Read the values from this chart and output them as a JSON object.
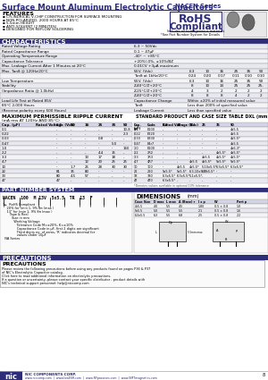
{
  "title_main": "Surface Mount Aluminum Electrolytic Capacitors",
  "title_series": "NACEN Series",
  "features": [
    "CYLINDRICAL V-CHIP CONSTRUCTION FOR SURFACE MOUNTING",
    "NON-POLARIZED, 2000 HOURS AT 85°C",
    "5.5mm HEIGHT",
    "ANTI-SOLVENT (2 MINUTES)",
    "DESIGNED FOR REFLOW SOLDERING"
  ],
  "rohs_text1": "RoHS",
  "rohs_text2": "Compliant",
  "rohs_sub": "Includes all homogeneous materials",
  "rohs_note": "*See Part Number System for Details",
  "characteristics_title": "CHARACTERISTICS",
  "ripple_title": "MAXIMUM PERMISSIBLE RIPPLE CURRENT",
  "ripple_subtitle": "(mA rms AT 120Hz AND 85°C)",
  "ripple_headers": [
    "Cap. (μF)",
    "Rated Voltage (Vdc)",
    "6.3",
    "10",
    "16",
    "25",
    "35",
    "50"
  ],
  "ripple_rows": [
    [
      "0.1",
      "-",
      "-",
      "-",
      "-",
      "-",
      "10.8"
    ],
    [
      "0.22",
      "-",
      "-",
      "-",
      "-",
      "-",
      "2.3"
    ],
    [
      "0.33",
      "-",
      "-",
      "-",
      "0.8",
      "-",
      "-"
    ],
    [
      "0.47",
      "-",
      "-",
      "-",
      "-",
      "5.0",
      "-"
    ],
    [
      "1.0",
      "-",
      "-",
      "-",
      "-",
      "-",
      "160"
    ],
    [
      "2.2",
      "-",
      "-",
      "-",
      "4.4",
      "15",
      "-"
    ],
    [
      "3.3",
      "-",
      "-",
      "10",
      "17",
      "18",
      "-"
    ],
    [
      "4.7",
      "-",
      "-",
      "12",
      "20",
      "25",
      "25"
    ],
    [
      "10",
      "-",
      "1.7",
      "25",
      "28",
      "30",
      "30"
    ],
    [
      "22",
      "81",
      "35",
      "80",
      "-",
      "-",
      "-"
    ],
    [
      "33",
      "80",
      "4.5",
      "57",
      "-",
      "-",
      "-"
    ],
    [
      "47",
      "47",
      "-",
      "-",
      "-",
      "-",
      "-"
    ]
  ],
  "std_title": "STANDARD PRODUCT AND CASE SIZE TABLE DXL (mm)",
  "std_headers": [
    "Cap.\n(μF)",
    "Code",
    "6.3",
    "10",
    "16",
    "25",
    "35",
    "50"
  ],
  "std_rows": [
    [
      "0.1",
      "E100",
      "-",
      "-",
      "-",
      "-",
      "-",
      "4x5.5"
    ],
    [
      "0.22",
      "E220",
      "-",
      "-",
      "-",
      "-",
      "-",
      "4x5.5"
    ],
    [
      "0.33",
      "E330",
      "-",
      "-",
      "-",
      "-",
      "-",
      "4x5.5*"
    ],
    [
      "0.47",
      "E4r7",
      "-",
      "-",
      "-",
      "-",
      "-",
      "4x5.5"
    ],
    [
      "1.0",
      "E100",
      "-",
      "-",
      "-",
      "-",
      "-",
      "4x6.3*"
    ],
    [
      "2.2",
      "2R2",
      "-",
      "-",
      "-",
      "-",
      "4x5.5*",
      "4x5.5*"
    ],
    [
      "3.3",
      "3R3",
      "-",
      "-",
      "-",
      "4x5.5",
      "4x5.5*",
      "4x5.5*"
    ],
    [
      "4.7",
      "4R7",
      "-",
      "-",
      "4x5.5",
      "4x5.5*",
      "5x5.5*",
      "5x5.5*"
    ],
    [
      "10",
      "100",
      "-",
      "4x5.5",
      "4x5.5*",
      "5-10x5.5*",
      "6.3x5.5*",
      "6.3x5.5*"
    ],
    [
      "22",
      "220",
      "5x5.5*",
      "5x5.5*",
      "6.3-10x5.5*",
      "6.3x5.5*",
      "-",
      "-"
    ],
    [
      "33",
      "330",
      "6.3x5.5*",
      "6.3x5.5*",
      "5-1x5.5*",
      "-",
      "-",
      "-"
    ],
    [
      "47",
      "470",
      "6.3x5.5*",
      "-",
      "-",
      "-",
      "-",
      "-"
    ]
  ],
  "std_footnote": "*Denotes values available in optional 10% tolerance",
  "partnumber_title": "PART NUMBER SYSTEM",
  "part_example": "NACEN  100  M  13V  5x5.5  TR  13  F",
  "dimensions_title": "DIMENSIONS",
  "dim_note": "(mm)",
  "dim_headers": [
    "Case Size",
    "D max",
    "L max",
    "A (Base) r",
    "l x p",
    "W",
    "Part p"
  ],
  "dim_rows": [
    [
      "4x5.5",
      "4.0",
      "5.5",
      "4.5",
      "1.80",
      "0.5 × 0.8",
      "1.0"
    ],
    [
      "5x5.5",
      "5.0",
      "5.5",
      "5.5",
      "2.1",
      "0.5 × 0.8",
      "1.6"
    ],
    [
      "6.3x5.5",
      "6.3",
      "5.5",
      "6.8",
      "2.5",
      "0.5 × 0.8",
      "2.2"
    ]
  ],
  "precautions_title": "PRECAUTIONS",
  "prec_text": "Please review the following precautions before using any products found on pages P36 & P37\nof NIC's Electrolytic Capacitor catalog.\nClick here to read additional information on electrolytic precautions.\nIf a question or uncertainty, please contact your specific distributor - product details with\nNIC's technical support personnel: help@niccomp.com",
  "company": "NIC COMPONENTS CORP.",
  "websites": "www.niccomp.com  |  www.lowESR.com  |  www.RFpassives.com  |  www.SMTmagnetics.com",
  "bg_color": "#ffffff",
  "header_color": "#2d2d7a",
  "table_border": "#999999",
  "row_alt1": "#e8e8f0",
  "row_alt2": "#f4f4f8",
  "section_header_bg": "#2d2d7a",
  "section_header_fg": "#ffffff"
}
